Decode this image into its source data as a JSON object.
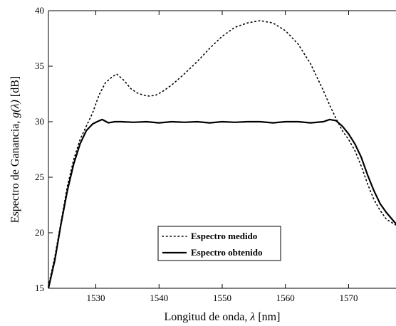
{
  "chart_data": {
    "type": "line",
    "xlabel_prefix": "Longitud de onda, ",
    "xlabel_symbol": "λ",
    "xlabel_suffix": " [nm]",
    "ylabel_prefix": "Espectro de Ganancia, ",
    "ylabel_symbol": "g(λ)",
    "ylabel_suffix": " [dB]",
    "xlim": [
      1522.5,
      1577.5
    ],
    "ylim": [
      15,
      40
    ],
    "xticks": [
      1530,
      1540,
      1550,
      1560,
      1570
    ],
    "yticks": [
      15,
      20,
      25,
      30,
      35,
      40
    ],
    "grid": false,
    "legend_position": "bottom-center",
    "series": [
      {
        "name": "Espectro medido",
        "style": "dotted",
        "color": "#000000",
        "x": [
          1522.5,
          1523.5,
          1524.5,
          1525.5,
          1526.5,
          1527.5,
          1528.5,
          1529.5,
          1530.5,
          1531.5,
          1532.5,
          1533.3,
          1534.5,
          1535.5,
          1536.5,
          1537.5,
          1538.5,
          1539.5,
          1540.5,
          1542,
          1544,
          1546,
          1548,
          1550,
          1552,
          1554,
          1556,
          1558,
          1560,
          1562,
          1564,
          1566,
          1567,
          1568,
          1569,
          1570,
          1571,
          1572,
          1573,
          1574,
          1575,
          1576,
          1577.5
        ],
        "y": [
          15.2,
          17.8,
          21.0,
          24.2,
          26.6,
          28.4,
          29.6,
          30.8,
          32.4,
          33.5,
          34.0,
          34.3,
          33.7,
          33.0,
          32.6,
          32.4,
          32.3,
          32.4,
          32.7,
          33.3,
          34.3,
          35.4,
          36.6,
          37.7,
          38.5,
          38.9,
          39.1,
          38.9,
          38.2,
          37.0,
          35.2,
          32.8,
          31.5,
          30.3,
          29.2,
          28.4,
          27.4,
          26.0,
          24.4,
          23.0,
          22.0,
          21.2,
          20.7
        ]
      },
      {
        "name": "Espectro obtenido",
        "style": "solid",
        "color": "#000000",
        "x": [
          1522.5,
          1523.5,
          1524.5,
          1525.5,
          1526.5,
          1527.5,
          1528.5,
          1529.5,
          1530.2,
          1531,
          1532,
          1533,
          1534,
          1536,
          1538,
          1540,
          1542,
          1544,
          1546,
          1548,
          1550,
          1552,
          1554,
          1556,
          1558,
          1560,
          1562,
          1564,
          1566,
          1567,
          1568,
          1569,
          1570,
          1571,
          1572,
          1573,
          1574,
          1575,
          1576,
          1577.5
        ],
        "y": [
          15.0,
          17.5,
          20.8,
          23.8,
          26.2,
          28.0,
          29.2,
          29.8,
          30.0,
          30.2,
          29.9,
          30.0,
          30.0,
          29.95,
          30.0,
          29.9,
          30.0,
          29.95,
          30.0,
          29.9,
          30.0,
          29.95,
          30.0,
          30.0,
          29.9,
          30.0,
          30.0,
          29.9,
          30.0,
          30.2,
          30.1,
          29.6,
          28.9,
          28.0,
          26.8,
          25.2,
          23.8,
          22.6,
          21.8,
          20.8
        ]
      }
    ]
  }
}
